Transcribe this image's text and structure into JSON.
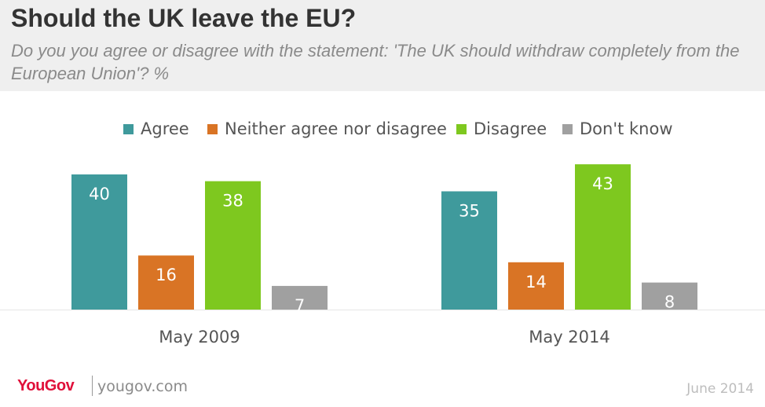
{
  "header": {
    "title": "Should the UK leave the EU?",
    "subtitle": "Do you you agree or disagree with the statement: 'The UK should withdraw completely from the European Union'? %"
  },
  "colors": {
    "agree": "#3f9a9c",
    "neither": "#d97425",
    "disagree": "#7ec81f",
    "dont_know": "#a0a0a0",
    "baseline": "#e6e6e6"
  },
  "chart_data": {
    "type": "bar",
    "categories": [
      "May 2009",
      "May 2014"
    ],
    "series": [
      {
        "name": "Agree",
        "values": [
          40,
          35
        ]
      },
      {
        "name": "Neither agree nor disagree",
        "values": [
          16,
          14
        ]
      },
      {
        "name": "Disagree",
        "values": [
          38,
          43
        ]
      },
      {
        "name": "Don't know",
        "values": [
          7,
          8
        ]
      }
    ],
    "title": "Should the UK leave the EU?",
    "xlabel": "",
    "ylabel": "",
    "ylim": [
      0,
      45
    ],
    "legend_position": "top",
    "grid": false
  },
  "footer": {
    "logo": "YouGov",
    "site": "yougov.com",
    "date": "June 2014"
  }
}
